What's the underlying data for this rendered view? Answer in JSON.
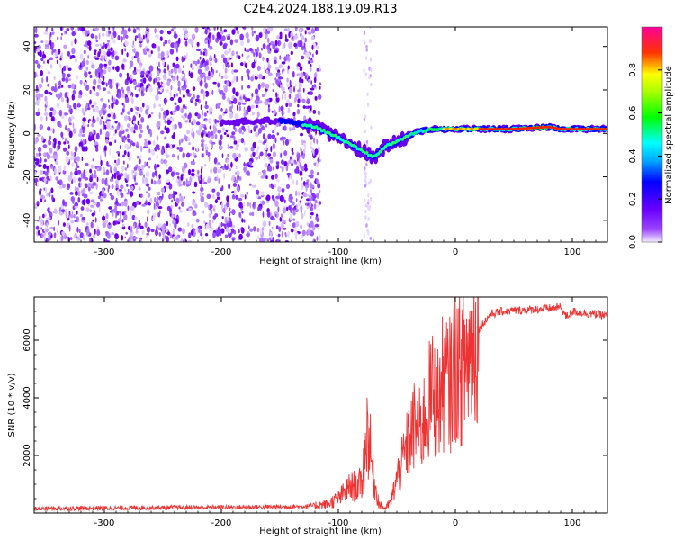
{
  "figure": {
    "title": "C2E4.2024.188.19.09.R13"
  },
  "chart_data": [
    {
      "type": "heatmap",
      "title": "",
      "xlabel": "Height of straight line (km)",
      "ylabel": "Frequency (Hz)",
      "xlim": [
        -360,
        130
      ],
      "ylim": [
        -50,
        49
      ],
      "xticks": [
        -300,
        -200,
        -100,
        0,
        100
      ],
      "yticks": [
        -40,
        -20,
        0,
        20,
        40
      ],
      "grid": false,
      "colorbar": {
        "label": "Normalized spectral amplitude",
        "range": [
          0,
          1
        ],
        "ticks": [
          0.0,
          0.2,
          0.4,
          0.6,
          0.8
        ],
        "colormap": [
          "#f4ecff",
          "#7a00ff",
          "#0000ff",
          "#00ffff",
          "#00ff00",
          "#ffff00",
          "#ff0000",
          "#ff00aa"
        ]
      },
      "signal_trace": {
        "x": [
          -200,
          -150,
          -120,
          -100,
          -80,
          -70,
          -60,
          -50,
          -40,
          -30,
          -20,
          0,
          20,
          50,
          80,
          90,
          100,
          130
        ],
        "y": [
          5,
          6,
          3,
          -2,
          -8,
          -11,
          -6,
          -4,
          -1,
          1,
          2,
          2,
          2,
          2,
          3,
          2,
          2,
          2
        ]
      },
      "noise_region": {
        "x": [
          -360,
          -120
        ],
        "y": [
          -50,
          49
        ]
      }
    },
    {
      "type": "line",
      "title": "",
      "xlabel": "Height of straight line (km)",
      "ylabel": "SNR (10 * v/v)",
      "xlim": [
        -360,
        130
      ],
      "ylim": [
        0,
        7500
      ],
      "xticks": [
        -300,
        -200,
        -100,
        0,
        100
      ],
      "yticks": [
        2000,
        4000,
        6000
      ],
      "grid": false,
      "series": [
        {
          "color": "#ee3333",
          "x": [
            -360,
            -330,
            -300,
            -270,
            -240,
            -200,
            -160,
            -130,
            -110,
            -100,
            -90,
            -80,
            -75,
            -70,
            -65,
            -60,
            -55,
            -50,
            -45,
            -40,
            -35,
            -30,
            -25,
            -20,
            -15,
            -10,
            -5,
            0,
            5,
            10,
            15,
            20,
            30,
            40,
            60,
            80,
            90,
            95,
            100,
            110,
            120,
            130
          ],
          "y": [
            150,
            160,
            170,
            180,
            190,
            200,
            210,
            230,
            300,
            500,
            900,
            1000,
            3000,
            1200,
            300,
            150,
            400,
            1200,
            1800,
            2500,
            3000,
            2800,
            3500,
            4200,
            3800,
            4600,
            4400,
            5200,
            5000,
            5400,
            5800,
            6400,
            6900,
            7000,
            7050,
            7100,
            7150,
            6800,
            7000,
            6950,
            6900,
            6850
          ]
        }
      ]
    }
  ]
}
